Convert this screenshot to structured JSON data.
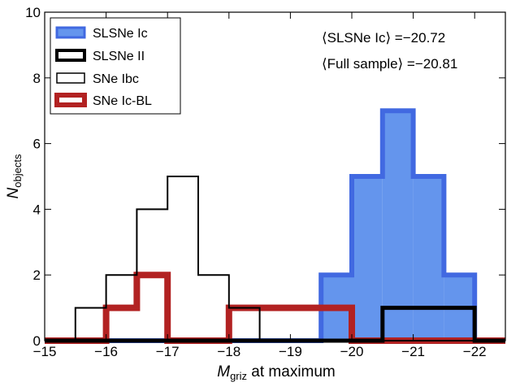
{
  "chart_data": {
    "type": "histogram",
    "xlabel_main": "M",
    "xlabel_sub": "griz",
    "xlabel_rest": " at maximum",
    "ylabel_main": "N",
    "ylabel_sub": "objects",
    "xlim": [
      -15,
      -22.5
    ],
    "ylim": [
      0,
      10
    ],
    "x_ticks": [
      -15,
      -16,
      -17,
      -18,
      -19,
      -20,
      -21,
      -22
    ],
    "x_tick_labels": [
      "−15",
      "−16",
      "−17",
      "−18",
      "−19",
      "−20",
      "−21",
      "−22"
    ],
    "y_ticks": [
      0,
      2,
      4,
      6,
      8,
      10
    ],
    "y_tick_labels": [
      "0",
      "2",
      "4",
      "6",
      "8",
      "10"
    ],
    "bin_edges": [
      -15.5,
      -16,
      -16.5,
      -17,
      -17.5,
      -18,
      -18.5,
      -19,
      -19.5,
      -20,
      -20.5,
      -21,
      -21.5,
      -22
    ],
    "series": [
      {
        "name": "SLSNe Ic",
        "key": "slsne_ic",
        "counts": [
          0,
          0,
          0,
          0,
          0,
          0,
          0,
          0,
          2,
          5,
          7,
          5,
          2
        ],
        "fill": "#6495ed",
        "stroke": "#4169e1"
      },
      {
        "name": "SLSNe II",
        "key": "slsne_ii",
        "counts": [
          0,
          0,
          0,
          0,
          0,
          0,
          0,
          0,
          0,
          0,
          1,
          1,
          1
        ],
        "fill": "none",
        "stroke": "#000000"
      },
      {
        "name": "SNe Ibc",
        "key": "sne_ibc",
        "counts": [
          1,
          2,
          4,
          5,
          2,
          1,
          0,
          0,
          0,
          0,
          0,
          0,
          0
        ],
        "fill": "none",
        "stroke": "#000000"
      },
      {
        "name": "SNe Ic-BL",
        "key": "sne_icbl",
        "counts": [
          0,
          1,
          2,
          0,
          0,
          1,
          1,
          1,
          1,
          0,
          0,
          0,
          0
        ],
        "fill": "none",
        "stroke": "#b22222"
      }
    ],
    "annotations": [
      "⟨SLSNe Ic⟩ =−20.72",
      "⟨Full sample⟩ =−20.81"
    ],
    "legend_position": "upper left"
  }
}
